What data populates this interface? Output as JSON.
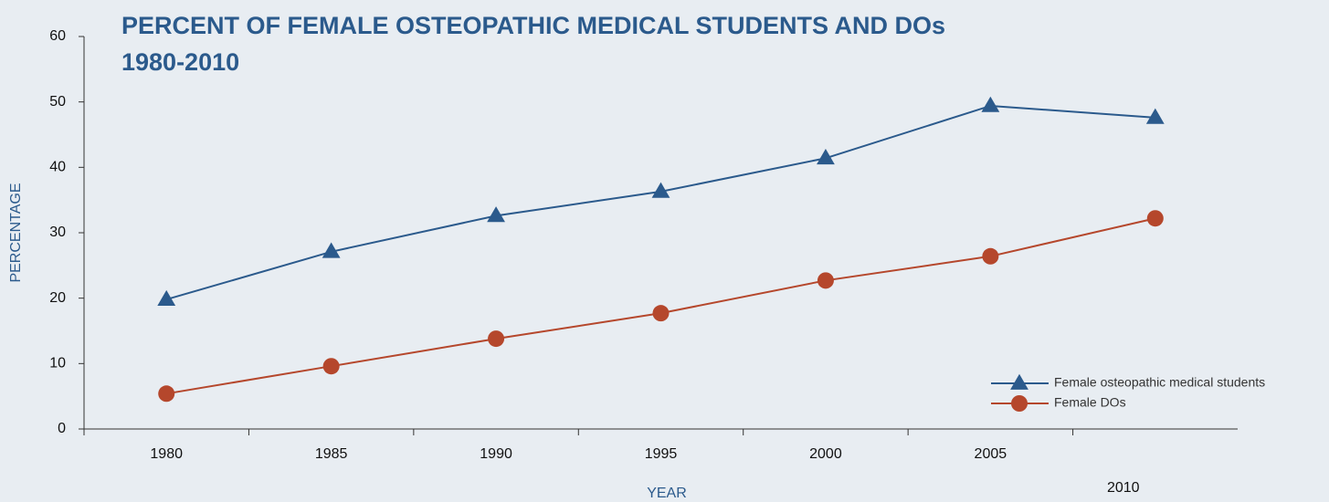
{
  "chart_data": {
    "type": "line",
    "title": "PERCENT OF FEMALE OSTEOPATHIC MEDICAL STUDENTS AND DOs",
    "subtitle": "1980-2010",
    "x_label": "YEAR",
    "y_label": "PERCENTAGE",
    "categories": [
      "1980",
      "1985",
      "1990",
      "1995",
      "2000",
      "2005",
      "2010"
    ],
    "series": [
      {
        "name": "Female osteopathic medical students",
        "color": "#2b5a8c",
        "marker": "triangle",
        "values": [
          19.8,
          27.1,
          32.6,
          36.3,
          41.4,
          49.4,
          47.6
        ]
      },
      {
        "name": "Female DOs",
        "color": "#b5472c",
        "marker": "circle",
        "values": [
          5.4,
          9.6,
          13.8,
          17.7,
          22.7,
          26.4,
          32.2
        ]
      }
    ],
    "ylim": [
      0,
      60
    ],
    "yticks": [
      0,
      10,
      20,
      30,
      40,
      50,
      60
    ],
    "grid": false,
    "legend": "lower right"
  }
}
